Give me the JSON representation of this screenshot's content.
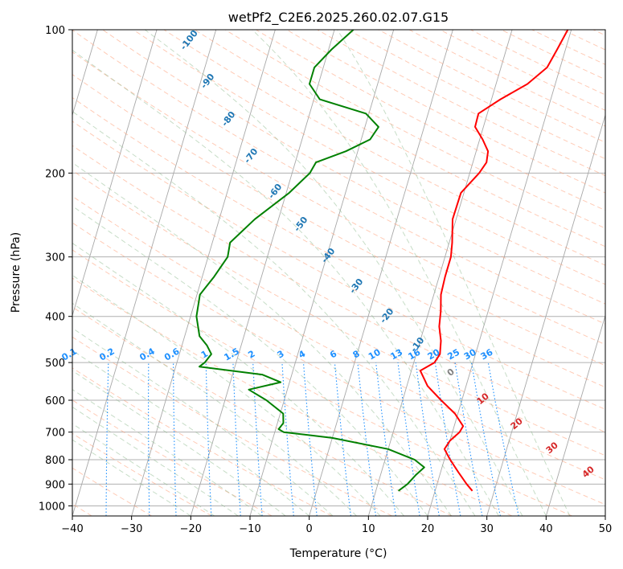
{
  "chart_data": {
    "type": "line",
    "title": "wetPf2_C2E6.2025.260.02.07.G15",
    "xlabel": "Temperature (°C)",
    "ylabel": "Pressure (hPa)",
    "xlim": [
      -40,
      50
    ],
    "ylim": [
      1050,
      100
    ],
    "x_ticks": [
      -40,
      -30,
      -20,
      -10,
      0,
      10,
      20,
      30,
      40,
      50
    ],
    "y_ticks": [
      100,
      200,
      300,
      400,
      500,
      600,
      700,
      800,
      900,
      1000
    ],
    "y_scale": "log",
    "grid": true,
    "colors": {
      "temperature": "#ff0000",
      "dewpoint": "#008000",
      "dry_adiabat": "#ffa07a",
      "moist_adiabat": "#8fbc8f",
      "mixing_ratio": "#1e90ff",
      "isotherm": "#808080"
    },
    "series": [
      {
        "name": "",
        "color": "#ff0000",
        "points": [
          [
            100,
            19.4
          ],
          [
            110,
            18.6
          ],
          [
            120,
            17.8
          ],
          [
            130,
            15.3
          ],
          [
            140,
            11.5
          ],
          [
            150,
            8.5
          ],
          [
            160,
            8.6
          ],
          [
            170,
            10.5
          ],
          [
            180,
            12.0
          ],
          [
            190,
            12.3
          ],
          [
            200,
            11.6
          ],
          [
            220,
            9.5
          ],
          [
            250,
            9.4
          ],
          [
            280,
            10.5
          ],
          [
            300,
            11.0
          ],
          [
            330,
            11.0
          ],
          [
            360,
            11.2
          ],
          [
            390,
            12.0
          ],
          [
            420,
            12.5
          ],
          [
            450,
            13.5
          ],
          [
            480,
            14.0
          ],
          [
            500,
            13.5
          ],
          [
            520,
            11.5
          ],
          [
            560,
            13.5
          ],
          [
            600,
            16.5
          ],
          [
            640,
            19.5
          ],
          [
            680,
            21.5
          ],
          [
            700,
            21.2
          ],
          [
            730,
            20.0
          ],
          [
            760,
            19.5
          ],
          [
            800,
            21.0
          ],
          [
            850,
            23.0
          ],
          [
            900,
            25.0
          ],
          [
            930,
            26.3
          ]
        ]
      },
      {
        "name": "",
        "color": "#008000",
        "points": [
          [
            100,
            -16.8
          ],
          [
            110,
            -19.5
          ],
          [
            120,
            -21.5
          ],
          [
            130,
            -21.5
          ],
          [
            140,
            -19.0
          ],
          [
            150,
            -10.5
          ],
          [
            160,
            -7.7
          ],
          [
            170,
            -8.5
          ],
          [
            180,
            -12.0
          ],
          [
            190,
            -16.5
          ],
          [
            200,
            -17.0
          ],
          [
            220,
            -19.5
          ],
          [
            250,
            -24.0
          ],
          [
            280,
            -27.0
          ],
          [
            300,
            -26.7
          ],
          [
            330,
            -28.0
          ],
          [
            360,
            -29.5
          ],
          [
            400,
            -29.0
          ],
          [
            440,
            -27.5
          ],
          [
            460,
            -25.8
          ],
          [
            480,
            -24.6
          ],
          [
            500,
            -25.3
          ],
          [
            510,
            -26.0
          ],
          [
            530,
            -15.0
          ],
          [
            550,
            -11.5
          ],
          [
            570,
            -16.5
          ],
          [
            600,
            -13.0
          ],
          [
            640,
            -9.5
          ],
          [
            670,
            -9.0
          ],
          [
            690,
            -9.5
          ],
          [
            700,
            -8.5
          ],
          [
            720,
            0.0
          ],
          [
            760,
            10.0
          ],
          [
            800,
            15.0
          ],
          [
            830,
            17.0
          ],
          [
            860,
            16.0
          ],
          [
            900,
            15.0
          ],
          [
            930,
            13.8
          ]
        ]
      }
    ],
    "mixing_ratio_labels": [
      "0.1",
      "0.2",
      "0.4",
      "0.6",
      "1",
      "1.5",
      "2",
      "3",
      "4",
      "6",
      "8",
      "10",
      "13",
      "16",
      "20",
      "25",
      "30",
      "36"
    ],
    "mixing_ratio_values": [
      0.1,
      0.2,
      0.4,
      0.6,
      1,
      1.5,
      2,
      3,
      4,
      6,
      8,
      10,
      13,
      16,
      20,
      25,
      30,
      36
    ],
    "dry_adiabat_labels": [
      "-100",
      "-90",
      "-80",
      "-70",
      "-60",
      "-50",
      "-40",
      "-30",
      "-20",
      "-10"
    ],
    "moist_adiabat_labels": [
      "0",
      "10",
      "20",
      "30",
      "40"
    ]
  }
}
